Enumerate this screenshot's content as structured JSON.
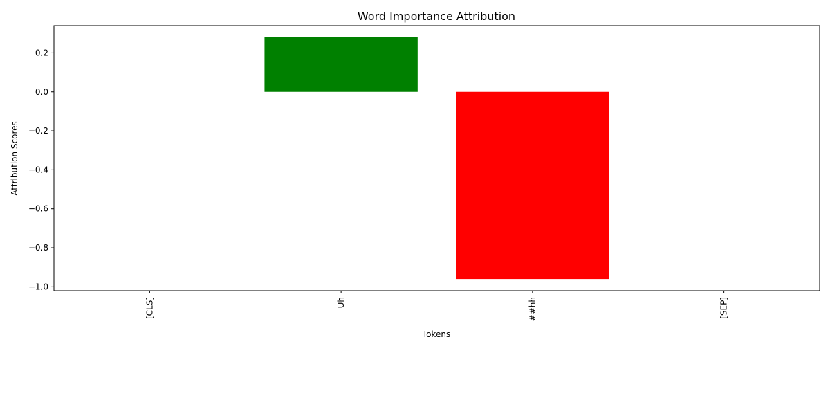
{
  "chart_data": {
    "type": "bar",
    "title": "Word Importance Attribution",
    "xlabel": "Tokens",
    "ylabel": "Attribution Scores",
    "categories": [
      "[CLS]",
      "Uh",
      "##hh",
      "[SEP]"
    ],
    "values": [
      0.0,
      0.28,
      -0.96,
      0.0
    ],
    "ylim": [
      -1.02,
      0.34
    ],
    "yticks": [
      "0.2",
      "0.0",
      "−0.2",
      "−0.4",
      "−0.6",
      "−0.8",
      "−1.0"
    ],
    "ytick_values": [
      0.2,
      0.0,
      -0.2,
      -0.4,
      -0.6,
      -0.8,
      -1.0
    ],
    "colors": {
      "positive": "#008000",
      "negative": "#ff0000",
      "axis": "#000000"
    },
    "grid": false,
    "legend": "none"
  }
}
